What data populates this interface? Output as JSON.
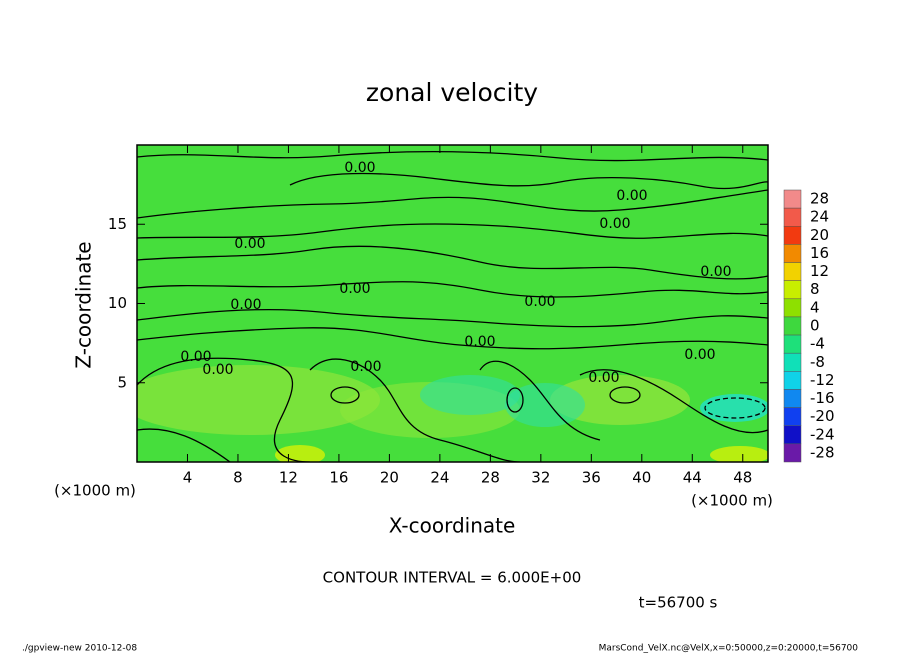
{
  "chart_data": {
    "type": "contour",
    "title": "zonal velocity",
    "x_label": "X-coordinate",
    "y_label": "Z-coordinate",
    "x_unit": "(×1000 m)",
    "xlim": [
      0,
      50
    ],
    "ylim": [
      0,
      20
    ],
    "xticks": [
      4,
      8,
      12,
      16,
      20,
      24,
      28,
      32,
      36,
      40,
      44,
      48
    ],
    "yticks": [
      5,
      10,
      15
    ],
    "colorbar": {
      "levels": [
        28,
        24,
        20,
        16,
        12,
        8,
        4,
        0,
        -4,
        -8,
        -12,
        -16,
        -20,
        -24,
        -28
      ],
      "colors": [
        "#f28a8a",
        "#f25a4a",
        "#f23a10",
        "#f28a00",
        "#f2d200",
        "#c8ee00",
        "#8ee000",
        "#3ed83e",
        "#1ee07a",
        "#10e0b8",
        "#10d2e8",
        "#1088f0",
        "#1040f0",
        "#1010c8",
        "#6a1aa8"
      ]
    },
    "contour_labels": [
      "0.00",
      "0.00",
      "0.00",
      "0.00",
      "0.00",
      "0.00",
      "0.00",
      "0.00",
      "0.00",
      "0.00",
      "0.00",
      "0.00",
      "0.00",
      "0.00"
    ],
    "contour_interval": "CONTOUR INTERVAL = 6.000E+00",
    "time": "t=56700 s"
  },
  "footer": {
    "left": "./gpview-new  2010-12-08",
    "right": "MarsCond_VelX.nc@VelX,x=0:50000,z=0:20000,t=56700"
  }
}
